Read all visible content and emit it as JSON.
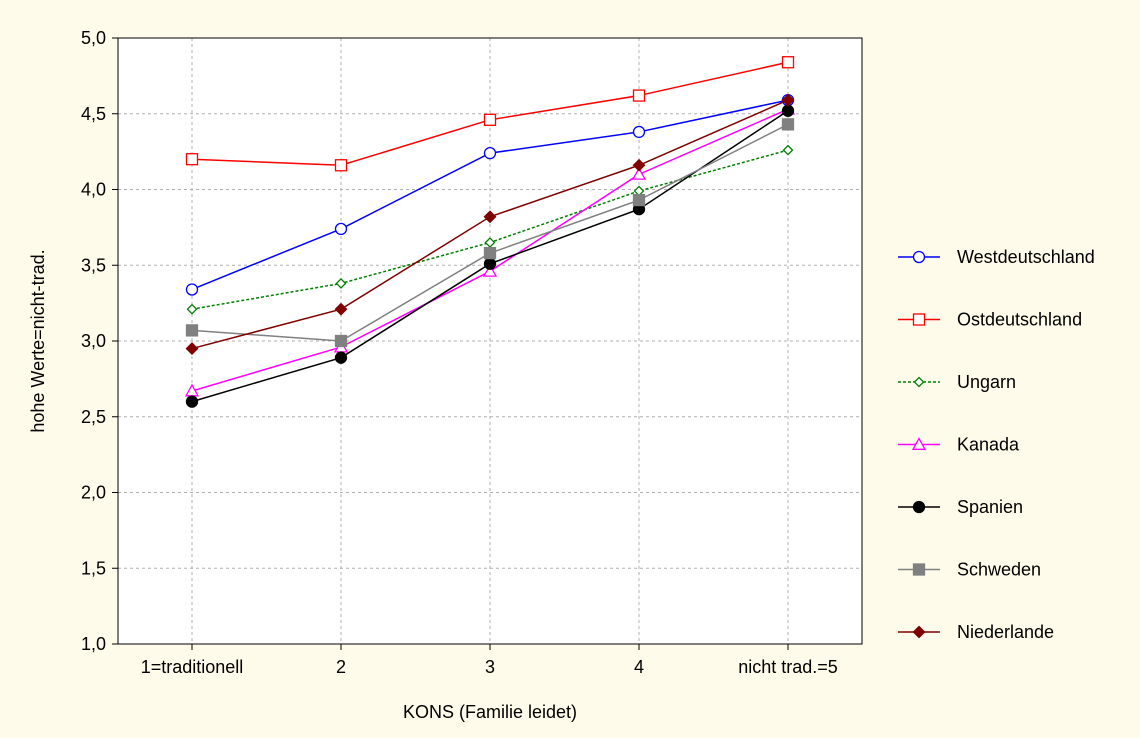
{
  "chart_data": {
    "type": "line",
    "xlabel": "KONS (Familie leidet)",
    "ylabel": "hohe Werte=nicht-trad.",
    "categories": [
      "1=traditionell",
      "2",
      "3",
      "4",
      "nicht trad.=5"
    ],
    "ylim": [
      1.0,
      5.0
    ],
    "yticks": [
      "1,0",
      "1,5",
      "2,0",
      "2,5",
      "3,0",
      "3,5",
      "4,0",
      "4,5",
      "5,0"
    ],
    "grid": true,
    "legend_position": "right",
    "series": [
      {
        "name": "Westdeutschland",
        "values": [
          3.34,
          3.74,
          4.24,
          4.38,
          4.59
        ],
        "color": "#0000ff",
        "marker": "circle-open",
        "dash": "solid"
      },
      {
        "name": "Ostdeutschland",
        "values": [
          4.2,
          4.16,
          4.46,
          4.62,
          4.84
        ],
        "color": "#ff0000",
        "marker": "square-open",
        "dash": "solid"
      },
      {
        "name": "Ungarn",
        "values": [
          3.21,
          3.38,
          3.65,
          3.99,
          4.26
        ],
        "color": "#008000",
        "marker": "diamond-open",
        "dash": "dotted"
      },
      {
        "name": "Kanada",
        "values": [
          2.67,
          2.96,
          3.46,
          4.1,
          4.53
        ],
        "color": "#ff00ff",
        "marker": "triangle-open",
        "dash": "solid"
      },
      {
        "name": "Spanien",
        "values": [
          2.6,
          2.89,
          3.51,
          3.87,
          4.52
        ],
        "color": "#000000",
        "marker": "circle-filled",
        "dash": "solid"
      },
      {
        "name": "Schweden",
        "values": [
          3.07,
          3.0,
          3.58,
          3.93,
          4.43
        ],
        "color": "#808080",
        "marker": "square-filled",
        "dash": "solid"
      },
      {
        "name": "Niederlande",
        "values": [
          2.95,
          3.21,
          3.82,
          4.16,
          4.59
        ],
        "color": "#800000",
        "marker": "diamond-filled",
        "dash": "solid"
      }
    ]
  }
}
